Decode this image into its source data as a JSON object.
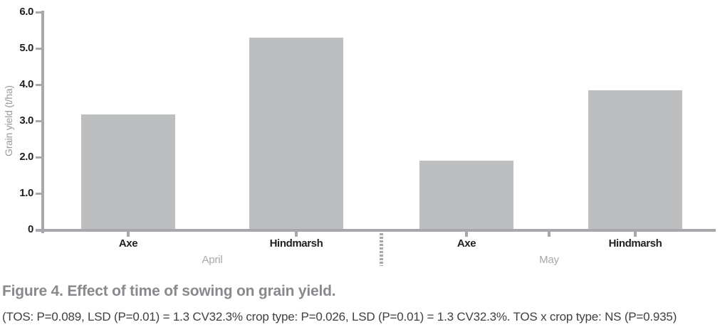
{
  "figure": {
    "caption": "Figure 4. Effect of time of sowing on grain yield.",
    "stats_note": "(TOS: P=0.089, LSD (P=0.01) = 1.3 CV32.3% crop type: P=0.026, LSD (P=0.01) = 1.3 CV32.3%. TOS x crop type: NS (P=0.935)"
  },
  "chart_data": {
    "type": "bar",
    "title": "",
    "xlabel": "",
    "ylabel": "Grain yield (t/ha)",
    "ylim": [
      0,
      6.0
    ],
    "ytick_labels": [
      "6.0",
      "5.0",
      "4.0",
      "3.0",
      "2.0",
      "1.0",
      "0"
    ],
    "grid": false,
    "legend": "none",
    "groups": [
      {
        "label": "April",
        "bars": [
          {
            "category": "Axe",
            "value": 3.16
          },
          {
            "category": "Hindmarsh",
            "value": 5.27
          }
        ]
      },
      {
        "label": "May",
        "bars": [
          {
            "category": "Axe",
            "value": 1.88
          },
          {
            "category": "Hindmarsh",
            "value": 3.83
          }
        ]
      }
    ],
    "colors": {
      "background": "#ffffff",
      "bar_fill": "#bcbec0",
      "axis": "#a6a8ab",
      "tick_label_text": "#231f20",
      "category_text": "#231f20",
      "group_text": "#a6a8ab",
      "axis_title_text": "#97999c",
      "caption_text": "#87898c",
      "stats_text": "#3f4041"
    }
  }
}
